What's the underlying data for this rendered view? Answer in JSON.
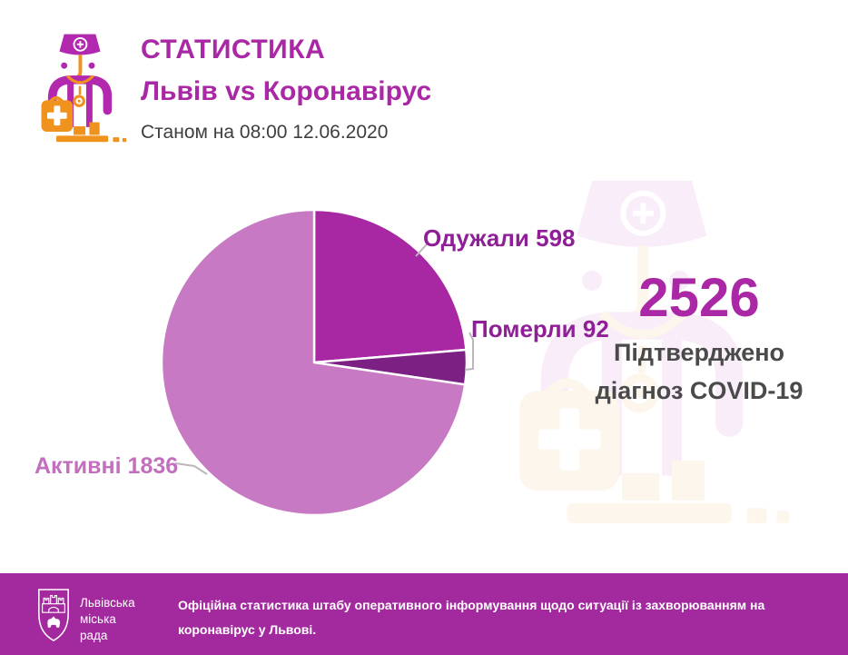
{
  "header": {
    "title": "СТАТИСТИКА",
    "subtitle": "Львів vs Коронавірус",
    "date_line": "Станом на 08:00 12.06.2020"
  },
  "chart_data": {
    "type": "pie",
    "title": "Львів vs Коронавірус — структура випадків COVID-19",
    "start_angle_deg": 0,
    "direction": "clockwise",
    "total": 2526,
    "slices": [
      {
        "key": "recovered",
        "label": "Одужали",
        "value": 598,
        "color": "#a827a3"
      },
      {
        "key": "died",
        "label": "Померли",
        "value": 92,
        "color": "#7c2083"
      },
      {
        "key": "active",
        "label": "Активні",
        "value": 1836,
        "color": "#c779c3"
      }
    ],
    "legend_position": "callout-labels"
  },
  "pie_labels": {
    "recovered": "Одужали 598",
    "died": "Померли 92",
    "active": "Активні 1836"
  },
  "summary": {
    "total_number": "2526",
    "caption_line1": "Підтверджено",
    "caption_line2": "діагноз COVID-19"
  },
  "footer": {
    "org_line1": "Львівська",
    "org_line2": "міська",
    "org_line3": "рада",
    "note_line1": "Офіційна статистика штабу оперативного інформування щодо ситуації із захворюванням на",
    "note_line2": "коронавірус у Львові."
  },
  "icons": {
    "doctor": "doctor-with-medical-bag-icon",
    "watermark": "doctor-watermark-icon",
    "coat_of_arms": "lviv-city-council-coat-of-arms-icon"
  },
  "colors": {
    "accent_magenta": "#aa28a5",
    "label_purple": "#8e1f96",
    "active_label_purple": "#c26fbe",
    "dark_text": "#3e3e40",
    "caption_gray": "#4a4a4a",
    "footer_background": "#a32a9e",
    "icon_purple": "#b228ae",
    "icon_orange": "#f0921e"
  }
}
